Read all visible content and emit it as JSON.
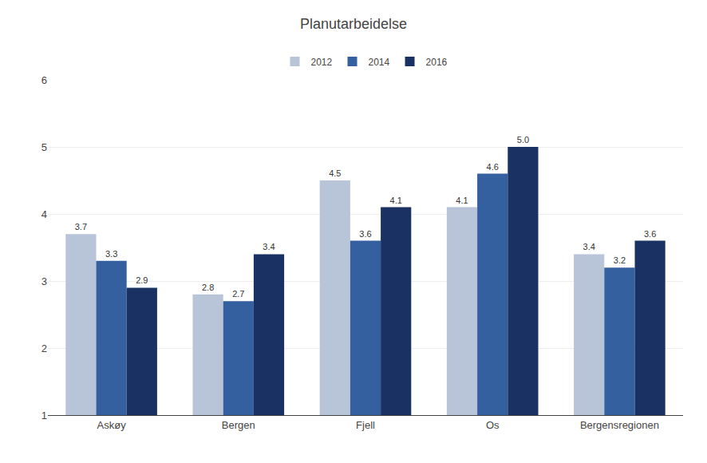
{
  "chart_data": {
    "type": "bar",
    "title": "Planutarbeidelse",
    "categories": [
      "Askøy",
      "Bergen",
      "Fjell",
      "Os",
      "Bergensregionen"
    ],
    "series": [
      {
        "name": "2012",
        "color": "#b8c4d8",
        "values": [
          3.7,
          2.8,
          4.5,
          4.1,
          3.4
        ]
      },
      {
        "name": "2014",
        "color": "#3560a0",
        "values": [
          3.3,
          2.7,
          3.6,
          4.6,
          3.2
        ]
      },
      {
        "name": "2016",
        "color": "#1a3263",
        "values": [
          2.9,
          3.4,
          4.1,
          5.0,
          3.6
        ],
        "value_labels": [
          "2.9",
          "3.4",
          "4.1",
          "5.0",
          "3.6"
        ]
      }
    ],
    "ylim": [
      1,
      6
    ],
    "yticks": [
      1,
      2,
      3,
      4,
      5,
      6
    ],
    "grid": true,
    "legend": "top",
    "data_labels": true
  }
}
